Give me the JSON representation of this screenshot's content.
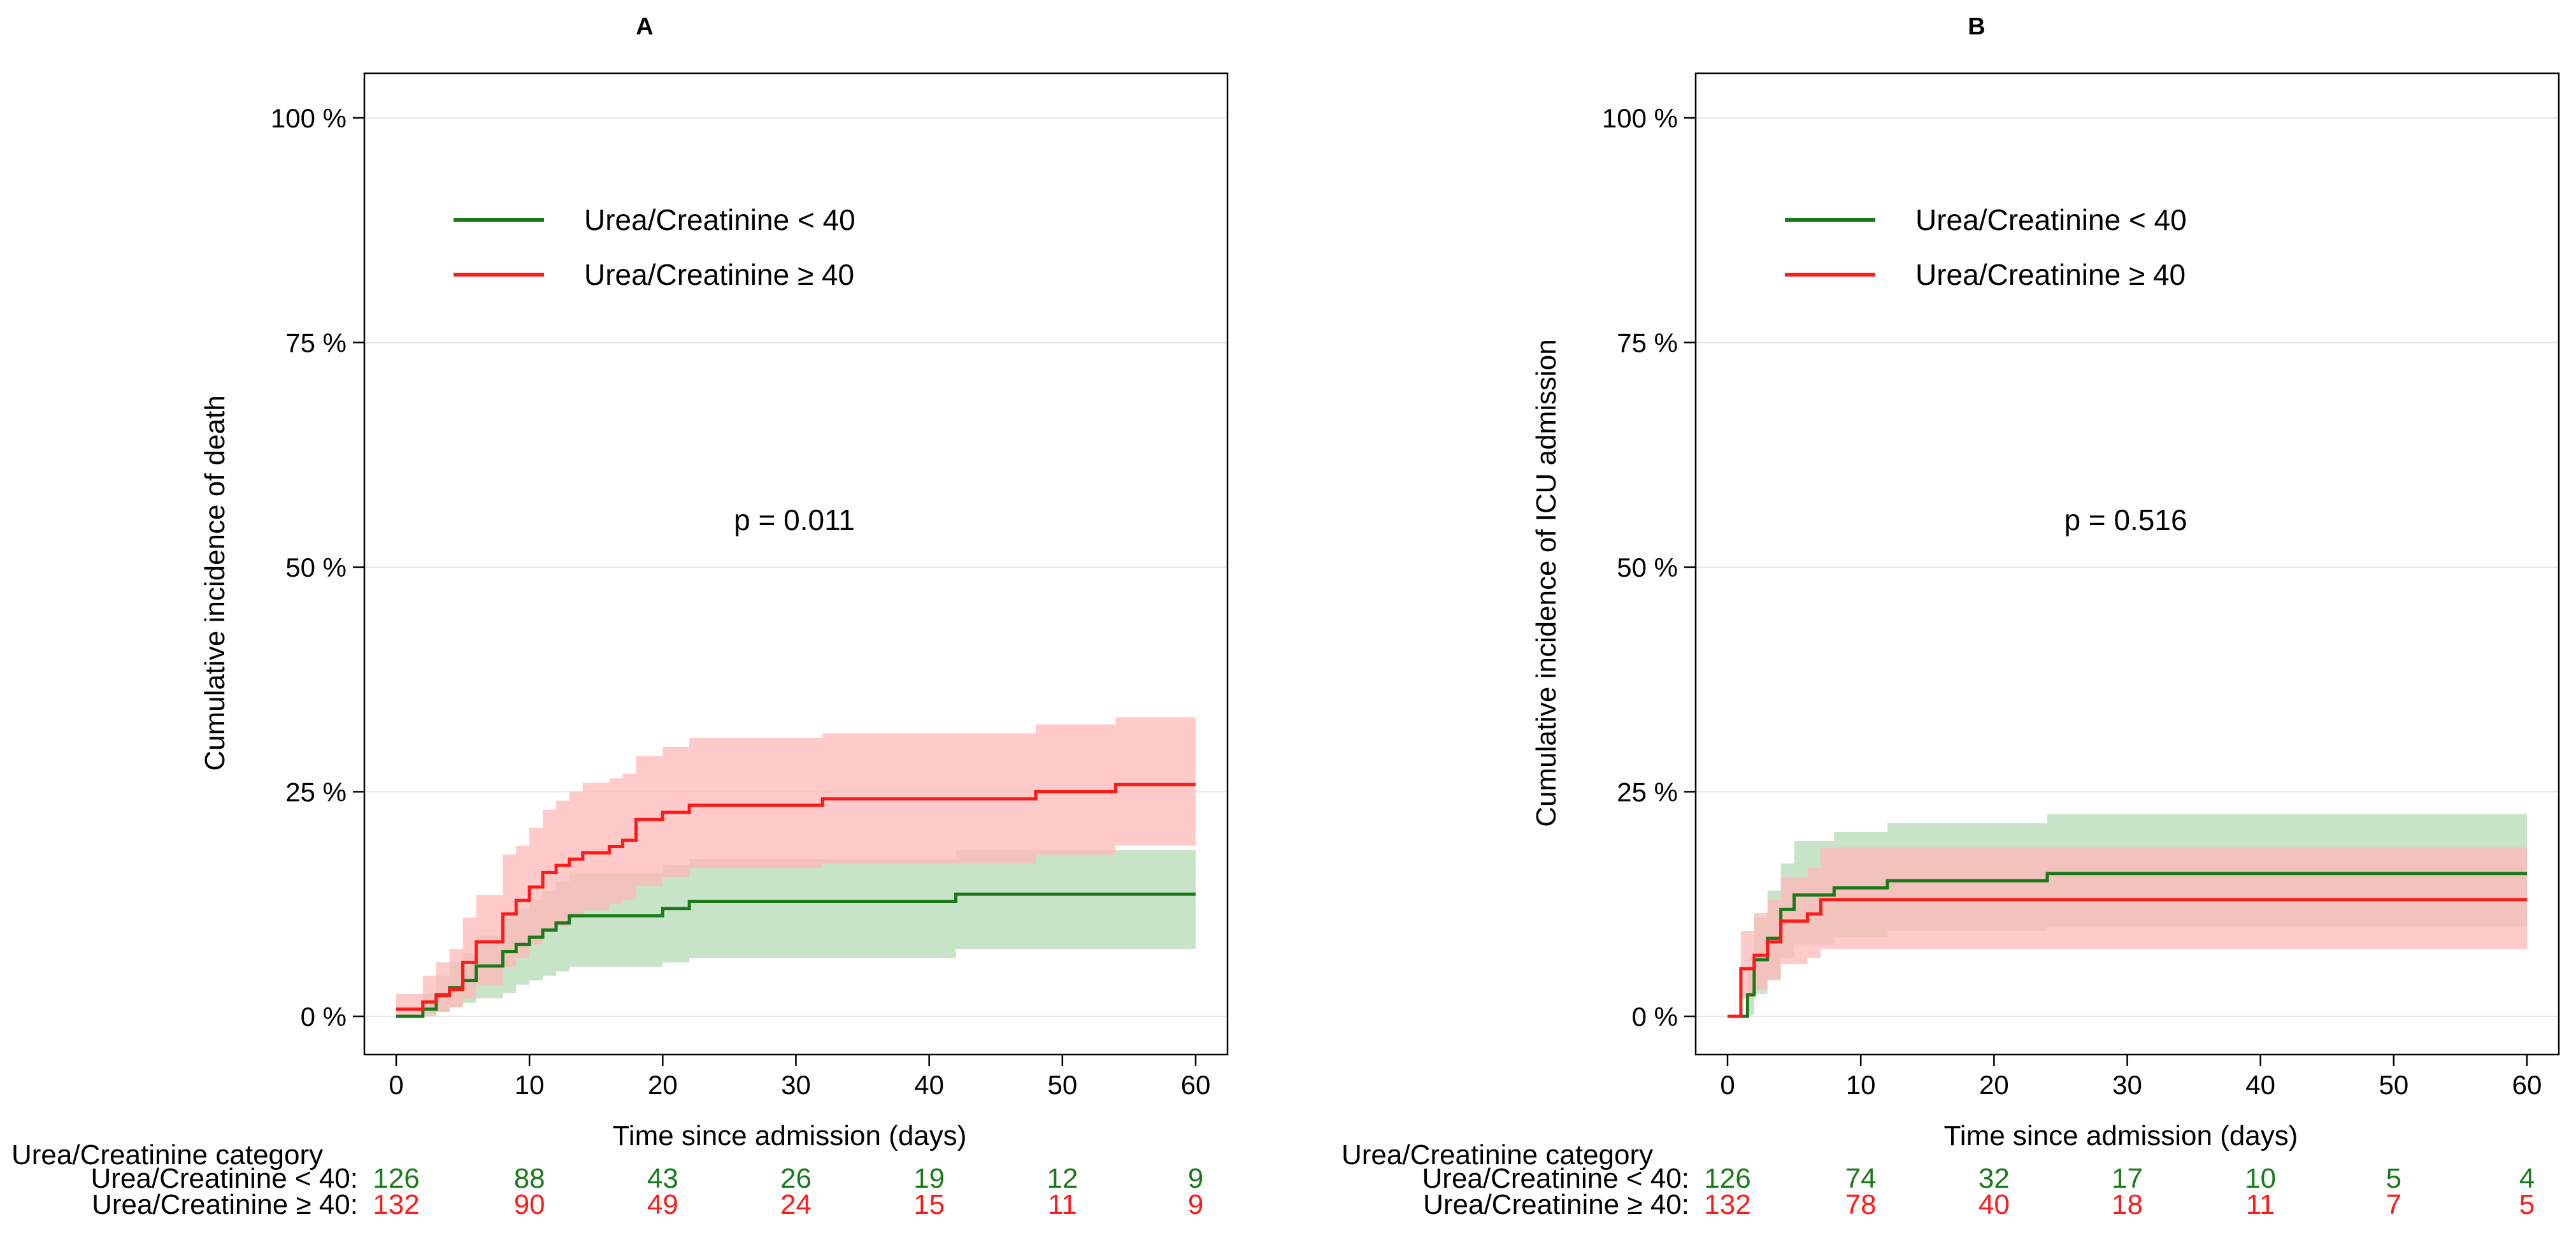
{
  "colors": {
    "low": "#1a7a1a",
    "high": "#ff1a1a",
    "low_band": "#b6dbb6",
    "high_band": "#ffb8b8",
    "overlap_band": "#dca58e"
  },
  "chart_data": [
    {
      "type": "line",
      "panel": "A",
      "title": "A",
      "xlabel": "Time since admission (days)",
      "ylabel": "Cumulative incidence of death",
      "xlim": [
        0,
        60
      ],
      "ylim": [
        0,
        100
      ],
      "xticks": [
        0,
        10,
        20,
        30,
        40,
        50,
        60
      ],
      "xtick_labels": [
        "0",
        "10",
        "20",
        "30",
        "40",
        "50",
        "60"
      ],
      "yticks": [
        0,
        25,
        50,
        75,
        100
      ],
      "ytick_labels": [
        "0 %",
        "25 %",
        "50 %",
        "75 %",
        "100 %"
      ],
      "grid": "horizontal",
      "legend_position": "top-left",
      "annotation": "p = 0.011",
      "series": [
        {
          "name": "Urea/Creatinine < 40",
          "color_key": "low",
          "steps": [
            [
              0,
              0
            ],
            [
              2,
              0.8
            ],
            [
              3,
              2.4
            ],
            [
              4,
              3.2
            ],
            [
              5,
              4.0
            ],
            [
              6,
              5.6
            ],
            [
              8,
              7.2
            ],
            [
              9,
              8.0
            ],
            [
              10,
              8.8
            ],
            [
              11,
              9.6
            ],
            [
              12,
              10.4
            ],
            [
              13,
              11.2
            ],
            [
              20,
              12.0
            ],
            [
              22,
              12.8
            ],
            [
              42,
              13.6
            ],
            [
              60,
              13.6
            ]
          ],
          "ci_lower": [
            [
              0,
              0
            ],
            [
              2,
              0
            ],
            [
              3,
              0.5
            ],
            [
              4,
              1.0
            ],
            [
              5,
              1.5
            ],
            [
              6,
              2.0
            ],
            [
              8,
              2.6
            ],
            [
              9,
              3.5
            ],
            [
              10,
              4.0
            ],
            [
              11,
              4.5
            ],
            [
              12,
              5.0
            ],
            [
              13,
              5.5
            ],
            [
              20,
              6.0
            ],
            [
              22,
              6.5
            ],
            [
              42,
              7.5
            ],
            [
              60,
              7.5
            ]
          ],
          "ci_upper": [
            [
              0,
              0
            ],
            [
              2,
              2.5
            ],
            [
              3,
              4.5
            ],
            [
              4,
              6.0
            ],
            [
              5,
              7.0
            ],
            [
              6,
              9.0
            ],
            [
              8,
              11.0
            ],
            [
              9,
              12.0
            ],
            [
              10,
              13.0
            ],
            [
              11,
              14.0
            ],
            [
              12,
              15.0
            ],
            [
              13,
              16.0
            ],
            [
              20,
              16.8
            ],
            [
              22,
              17.5
            ],
            [
              42,
              18.5
            ],
            [
              60,
              18.5
            ]
          ]
        },
        {
          "name": "Urea/Creatinine ≥ 40",
          "color_key": "high",
          "steps": [
            [
              0,
              0.8
            ],
            [
              2,
              1.6
            ],
            [
              3,
              2.3
            ],
            [
              4,
              3.0
            ],
            [
              5,
              6.0
            ],
            [
              6,
              8.3
            ],
            [
              8,
              11.4
            ],
            [
              9,
              12.9
            ],
            [
              10,
              14.4
            ],
            [
              11,
              16.0
            ],
            [
              12,
              16.8
            ],
            [
              13,
              17.5
            ],
            [
              14,
              18.2
            ],
            [
              16,
              18.9
            ],
            [
              17,
              19.6
            ],
            [
              18,
              21.9
            ],
            [
              20,
              22.7
            ],
            [
              22,
              23.5
            ],
            [
              32,
              24.2
            ],
            [
              48,
              25.0
            ],
            [
              54,
              25.8
            ],
            [
              60,
              25.8
            ]
          ],
          "ci_lower": [
            [
              0,
              0
            ],
            [
              2,
              0.2
            ],
            [
              3,
              0.5
            ],
            [
              4,
              1.0
            ],
            [
              5,
              2.0
            ],
            [
              6,
              3.5
            ],
            [
              8,
              5.5
            ],
            [
              9,
              6.5
            ],
            [
              10,
              8.0
            ],
            [
              11,
              9.5
            ],
            [
              12,
              10.0
            ],
            [
              13,
              11.0
            ],
            [
              14,
              11.8
            ],
            [
              16,
              12.5
            ],
            [
              17,
              13.0
            ],
            [
              18,
              14.5
            ],
            [
              20,
              15.5
            ],
            [
              22,
              16.5
            ],
            [
              32,
              17.0
            ],
            [
              48,
              18.0
            ],
            [
              54,
              19.0
            ],
            [
              60,
              19.0
            ]
          ],
          "ci_upper": [
            [
              0,
              2.5
            ],
            [
              2,
              4.5
            ],
            [
              3,
              6.0
            ],
            [
              4,
              7.5
            ],
            [
              5,
              11.0
            ],
            [
              6,
              13.5
            ],
            [
              8,
              18.0
            ],
            [
              9,
              19.0
            ],
            [
              10,
              21.0
            ],
            [
              11,
              23.0
            ],
            [
              12,
              24.0
            ],
            [
              13,
              25.0
            ],
            [
              14,
              26.0
            ],
            [
              16,
              26.5
            ],
            [
              17,
              27.0
            ],
            [
              18,
              29.0
            ],
            [
              20,
              30.0
            ],
            [
              22,
              31.0
            ],
            [
              32,
              31.5
            ],
            [
              48,
              32.5
            ],
            [
              54,
              33.3
            ],
            [
              60,
              33.3
            ]
          ]
        }
      ],
      "risk_table": {
        "header": "Urea/Creatinine category",
        "rows": [
          {
            "label": "Urea/Creatinine < 40:",
            "color_key": "low",
            "values": [
              "126",
              "88",
              "43",
              "26",
              "19",
              "12",
              "9"
            ]
          },
          {
            "label": "Urea/Creatinine ≥ 40:",
            "color_key": "high",
            "values": [
              "132",
              "90",
              "49",
              "24",
              "15",
              "11",
              "9"
            ]
          }
        ]
      }
    },
    {
      "type": "line",
      "panel": "B",
      "title": "B",
      "xlabel": "Time since admission (days)",
      "ylabel": "Cumulative incidence of ICU admission",
      "xlim": [
        0,
        60
      ],
      "ylim": [
        0,
        100
      ],
      "xticks": [
        0,
        10,
        20,
        30,
        40,
        50,
        60
      ],
      "xtick_labels": [
        "0",
        "10",
        "20",
        "30",
        "40",
        "50",
        "60"
      ],
      "yticks": [
        0,
        25,
        50,
        75,
        100
      ],
      "ytick_labels": [
        "0 %",
        "25 %",
        "50 %",
        "75 %",
        "100 %"
      ],
      "grid": "horizontal",
      "legend_position": "top-left",
      "annotation": "p = 0.516",
      "series": [
        {
          "name": "Urea/Creatinine < 40",
          "color_key": "low",
          "steps": [
            [
              0,
              0
            ],
            [
              1.5,
              2.4
            ],
            [
              2,
              6.3
            ],
            [
              3,
              8.7
            ],
            [
              4,
              11.9
            ],
            [
              5,
              13.5
            ],
            [
              8,
              14.3
            ],
            [
              12,
              15.1
            ],
            [
              24,
              15.9
            ],
            [
              60,
              15.9
            ]
          ],
          "ci_lower": [
            [
              0,
              0
            ],
            [
              1.5,
              0.2
            ],
            [
              2,
              2.5
            ],
            [
              3,
              4.0
            ],
            [
              4,
              6.5
            ],
            [
              5,
              8.0
            ],
            [
              8,
              8.8
            ],
            [
              12,
              9.5
            ],
            [
              24,
              10.0
            ],
            [
              60,
              10.0
            ]
          ],
          "ci_upper": [
            [
              0,
              0
            ],
            [
              1.5,
              5.5
            ],
            [
              2,
              11.0
            ],
            [
              3,
              14.0
            ],
            [
              4,
              17.0
            ],
            [
              5,
              19.5
            ],
            [
              8,
              20.5
            ],
            [
              12,
              21.5
            ],
            [
              24,
              22.5
            ],
            [
              60,
              22.5
            ]
          ]
        },
        {
          "name": "Urea/Creatinine ≥ 40",
          "color_key": "high",
          "steps": [
            [
              0,
              0
            ],
            [
              1,
              5.3
            ],
            [
              2,
              6.8
            ],
            [
              3,
              8.3
            ],
            [
              4,
              10.6
            ],
            [
              6,
              11.4
            ],
            [
              7,
              13.0
            ],
            [
              60,
              13.0
            ]
          ],
          "ci_lower": [
            [
              0,
              0
            ],
            [
              1,
              2.0
            ],
            [
              2,
              3.0
            ],
            [
              3,
              4.2
            ],
            [
              4,
              5.8
            ],
            [
              6,
              6.5
            ],
            [
              7,
              7.5
            ],
            [
              60,
              7.5
            ]
          ],
          "ci_upper": [
            [
              0,
              0
            ],
            [
              1,
              9.5
            ],
            [
              2,
              11.5
            ],
            [
              3,
              13.0
            ],
            [
              4,
              15.5
            ],
            [
              6,
              16.5
            ],
            [
              7,
              18.8
            ],
            [
              60,
              18.8
            ]
          ]
        }
      ],
      "risk_table": {
        "header": "Urea/Creatinine category",
        "rows": [
          {
            "label": "Urea/Creatinine < 40:",
            "color_key": "low",
            "values": [
              "126",
              "74",
              "32",
              "17",
              "10",
              "5",
              "4"
            ]
          },
          {
            "label": "Urea/Creatinine ≥ 40:",
            "color_key": "high",
            "values": [
              "132",
              "78",
              "40",
              "18",
              "11",
              "7",
              "5"
            ]
          }
        ]
      }
    }
  ]
}
